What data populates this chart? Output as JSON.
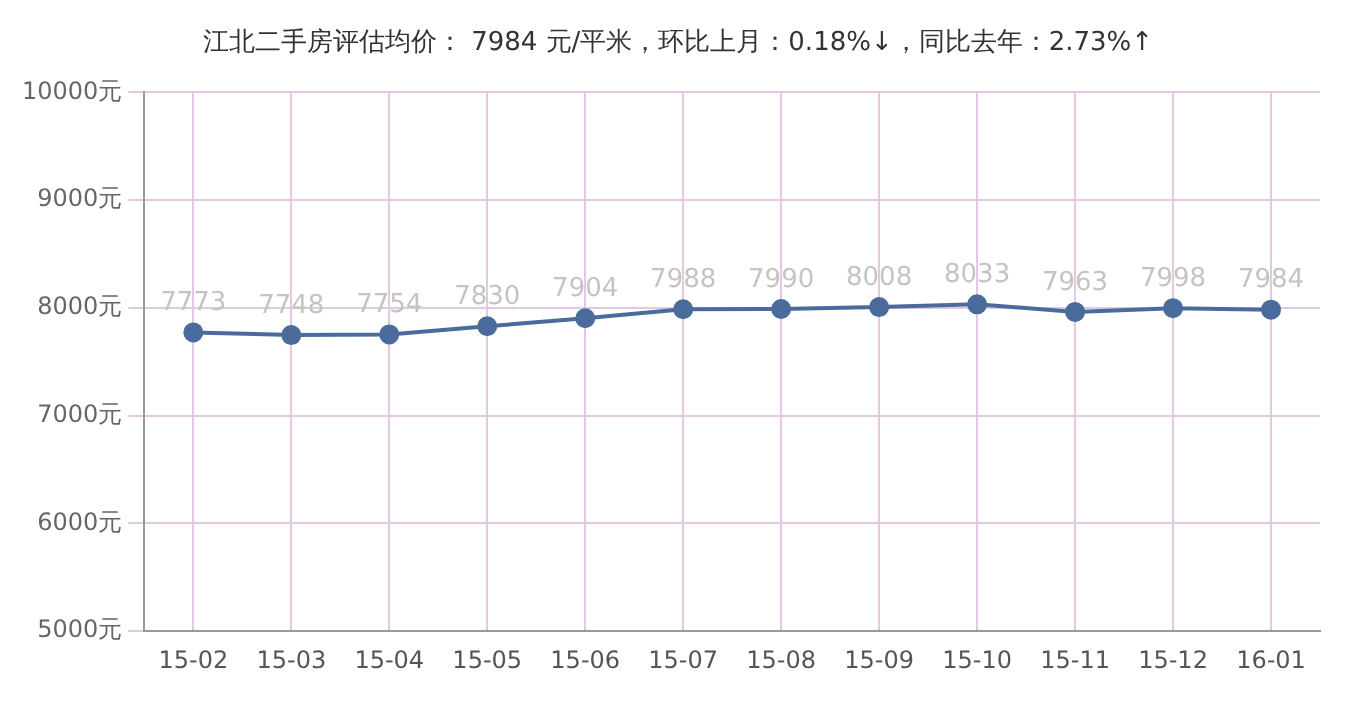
{
  "chart_data": {
    "type": "line",
    "title": "江北二手房评估均价： 7984 元/平米，环比上月：0.18%↓，同比去年：2.73%↑",
    "categories": [
      "15-02",
      "15-03",
      "15-04",
      "15-05",
      "15-06",
      "15-07",
      "15-08",
      "15-09",
      "15-10",
      "15-11",
      "15-12",
      "16-01"
    ],
    "series": [
      {
        "color": "#4a6b9c",
        "values": [
          7773,
          7748,
          7754,
          7830,
          7904,
          7988,
          7990,
          8008,
          8033,
          7963,
          7998,
          7984
        ]
      }
    ],
    "ylim": [
      5000,
      10000
    ],
    "yticks": [
      {
        "value": 5000,
        "label": "5000元"
      },
      {
        "value": 6000,
        "label": "6000元"
      },
      {
        "value": 7000,
        "label": "7000元"
      },
      {
        "value": 8000,
        "label": "8000元"
      },
      {
        "value": 9000,
        "label": "9000元"
      },
      {
        "value": 10000,
        "label": "10000元"
      }
    ],
    "grid": true,
    "data_labels": true,
    "marker": "circle",
    "line_style": "solid",
    "legend": false
  }
}
